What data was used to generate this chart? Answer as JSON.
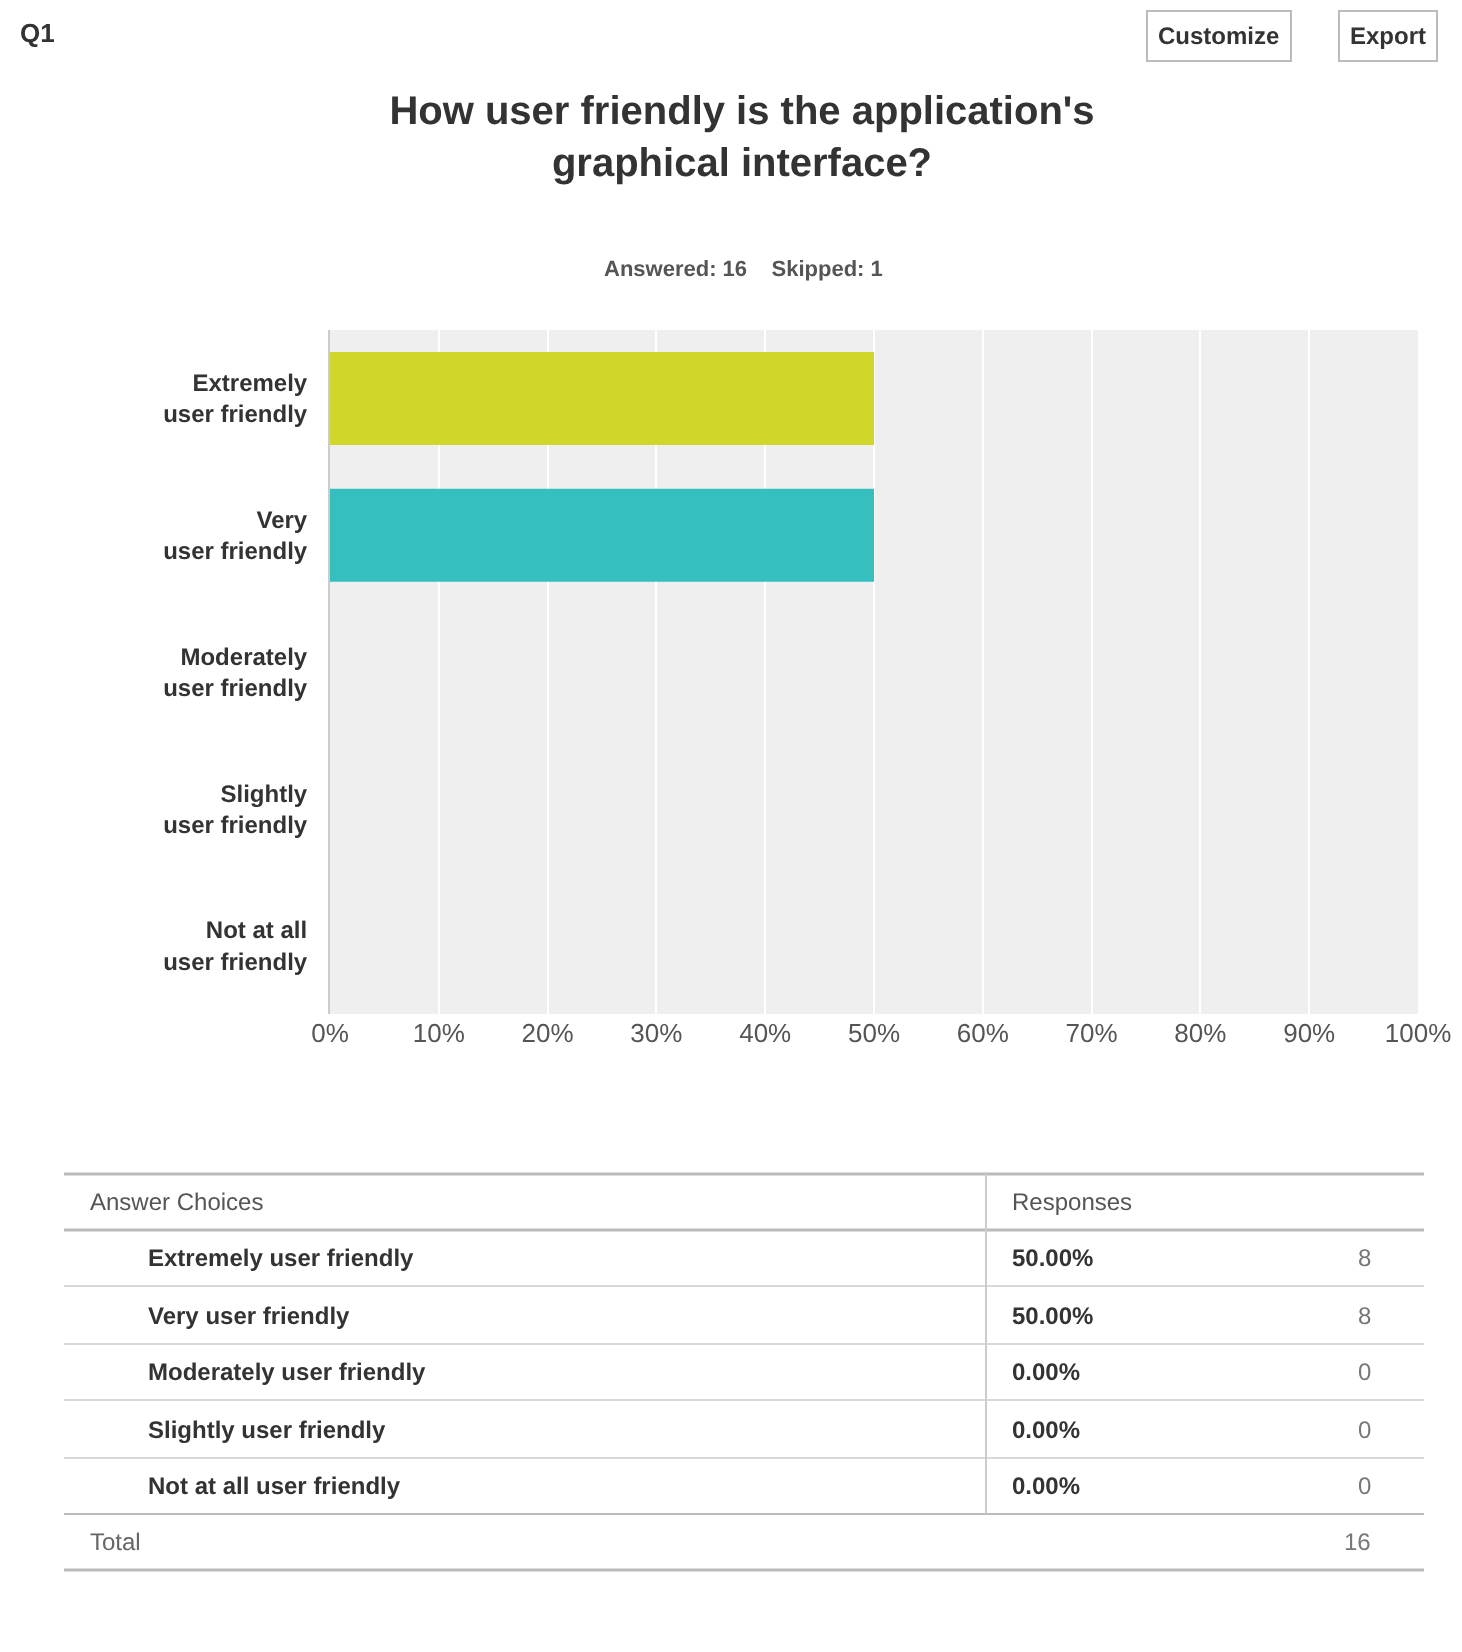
{
  "chart_data": {
    "type": "bar",
    "orientation": "horizontal",
    "title": "How user friendly is the application's\ngraphical interface?",
    "subtitle": "Answered: 16    Skipped: 1",
    "categories": [
      "Extremely\nuser friendly",
      "Very\nuser friendly",
      "Moderately\nuser friendly",
      "Slightly\nuser friendly",
      "Not at all\nuser friendly"
    ],
    "values": [
      50,
      50,
      0,
      0,
      0
    ],
    "colors": [
      "#d0d62a",
      "#35bfbf",
      null,
      null,
      null
    ],
    "xlim": [
      0,
      100
    ],
    "xticks": [
      {
        "value": 0,
        "label": "0%"
      },
      {
        "value": 10,
        "label": "10%"
      },
      {
        "value": 20,
        "label": "20%"
      },
      {
        "value": 30,
        "label": "30%"
      },
      {
        "value": 40,
        "label": "40%"
      },
      {
        "value": 50,
        "label": "50%"
      },
      {
        "value": 60,
        "label": "60%"
      },
      {
        "value": 70,
        "label": "70%"
      },
      {
        "value": 80,
        "label": "80%"
      },
      {
        "value": 90,
        "label": "90%"
      },
      {
        "value": 100,
        "label": "100%"
      }
    ],
    "grid": "x",
    "annotations": [
      "Q1",
      "Customize",
      "Export",
      "Answer Choices",
      "Responses",
      "Extremely user friendly",
      "Very user friendly",
      "Moderately user friendly",
      "Slightly user friendly",
      "Not at all user friendly",
      "8",
      "8",
      "0",
      "0",
      "0",
      "Total",
      "16",
      "50.00%",
      "50.00%",
      "0.00%",
      "0.00%",
      "0.00%"
    ]
  }
}
